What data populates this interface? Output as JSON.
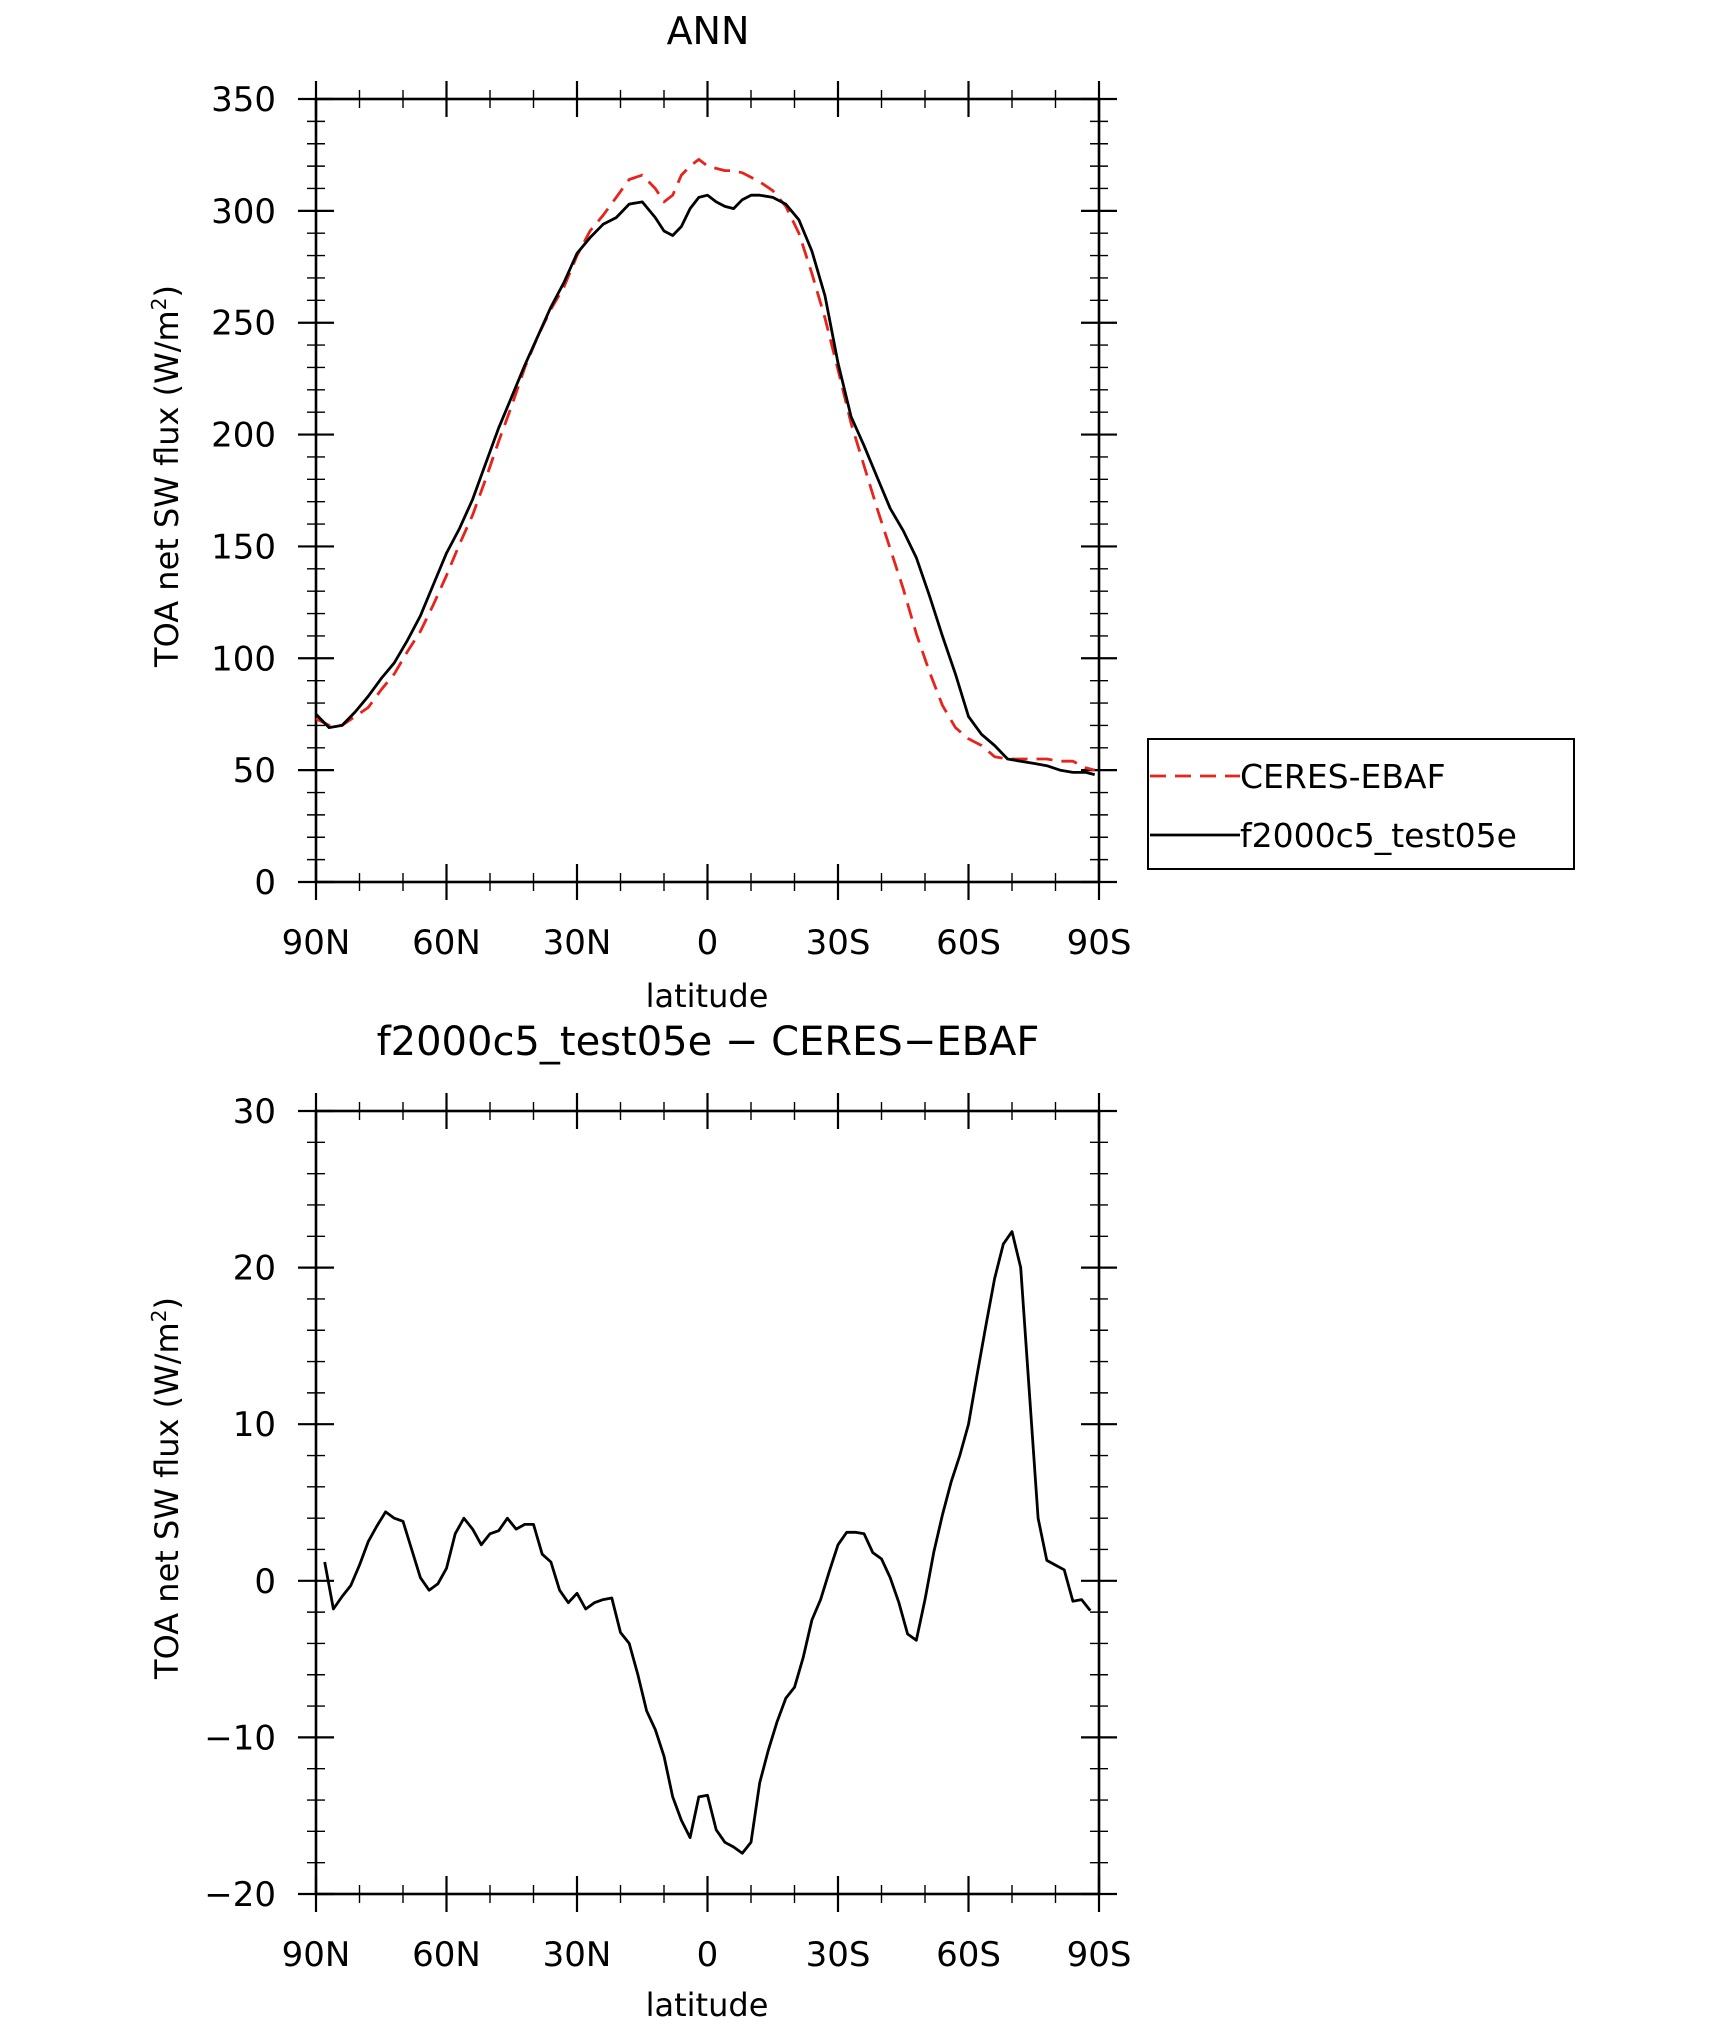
{
  "chart_data": [
    {
      "type": "line",
      "title": "ANN",
      "xlabel": "latitude",
      "ylabel_main": "TOA net SW flux (W/m",
      "ylabel_sup": "2",
      "ylabel_tail": ")",
      "xlim": [
        -90,
        90
      ],
      "ylim": [
        0,
        350
      ],
      "xticks": [
        -90,
        -60,
        -30,
        0,
        30,
        60,
        90
      ],
      "xtick_labels": [
        "90N",
        "60N",
        "30N",
        "0",
        "30S",
        "60S",
        "90S"
      ],
      "yticks": [
        0,
        50,
        100,
        150,
        200,
        250,
        300,
        350
      ],
      "ytick_labels": [
        "0",
        "50",
        "100",
        "150",
        "200",
        "250",
        "300",
        "350"
      ],
      "legend_position": "right",
      "series": [
        {
          "name": "CERES-EBAF",
          "color": "#e8231b",
          "dash": "dashed",
          "x": [
            -90,
            -87,
            -84,
            -81,
            -78,
            -75,
            -72,
            -69,
            -66,
            -63,
            -60,
            -57,
            -54,
            -51,
            -48,
            -45,
            -42,
            -39,
            -36,
            -33,
            -30,
            -27,
            -24,
            -21,
            -18,
            -15,
            -12,
            -10,
            -8,
            -6,
            -4,
            -2,
            0,
            2,
            4,
            6,
            8,
            10,
            12,
            15,
            18,
            21,
            24,
            27,
            30,
            33,
            36,
            39,
            42,
            45,
            48,
            51,
            54,
            57,
            60,
            63,
            66,
            69,
            72,
            75,
            78,
            81,
            84,
            87,
            89
          ],
          "y": [
            73,
            70,
            70,
            74,
            78,
            86,
            93,
            103,
            112,
            124,
            137,
            151,
            164,
            180,
            197,
            213,
            230,
            244,
            256,
            266,
            280,
            291,
            298,
            306,
            314,
            316,
            310,
            304,
            307,
            316,
            320,
            323,
            320,
            319,
            318,
            318,
            317,
            315,
            313,
            309,
            302,
            290,
            272,
            252,
            229,
            205,
            186,
            167,
            149,
            131,
            111,
            94,
            79,
            69,
            64,
            61,
            56,
            55,
            55,
            55,
            55,
            54,
            54,
            51,
            50
          ]
        },
        {
          "name": "f2000c5_test05e",
          "color": "#000000",
          "dash": "solid",
          "x": [
            -90,
            -87,
            -84,
            -81,
            -78,
            -75,
            -72,
            -69,
            -66,
            -63,
            -60,
            -57,
            -54,
            -51,
            -48,
            -45,
            -42,
            -39,
            -36,
            -33,
            -30,
            -27,
            -24,
            -21,
            -18,
            -15,
            -12,
            -10,
            -8,
            -6,
            -4,
            -2,
            0,
            2,
            4,
            6,
            8,
            10,
            12,
            15,
            18,
            21,
            24,
            27,
            30,
            33,
            36,
            39,
            42,
            45,
            48,
            51,
            54,
            57,
            60,
            63,
            66,
            69,
            72,
            75,
            78,
            81,
            84,
            87,
            89
          ],
          "y": [
            75,
            69,
            70,
            76,
            83,
            91,
            98,
            108,
            119,
            133,
            147,
            158,
            171,
            187,
            203,
            217,
            231,
            244,
            257,
            268,
            281,
            288,
            294,
            297,
            303,
            304,
            297,
            291,
            289,
            293,
            301,
            306,
            307,
            304,
            302,
            301,
            305,
            307,
            307,
            306,
            303,
            296,
            282,
            262,
            232,
            208,
            195,
            181,
            167,
            157,
            145,
            128,
            110,
            93,
            74,
            66,
            61,
            55,
            54,
            53,
            52,
            50,
            49,
            49,
            48
          ]
        }
      ]
    },
    {
      "type": "line",
      "title": "f2000c5_test05e − CERES−EBAF",
      "xlabel": "latitude",
      "ylabel_main": "TOA net SW flux (W/m",
      "ylabel_sup": "2",
      "ylabel_tail": ")",
      "xlim": [
        -90,
        90
      ],
      "ylim": [
        -20,
        30
      ],
      "xticks": [
        -90,
        -60,
        -30,
        0,
        30,
        60,
        90
      ],
      "xtick_labels": [
        "90N",
        "60N",
        "30N",
        "0",
        "30S",
        "60S",
        "90S"
      ],
      "yticks": [
        -20,
        -10,
        0,
        10,
        20,
        30
      ],
      "ytick_labels": [
        "−20",
        "−10",
        "0",
        "10",
        "20",
        "30"
      ],
      "series": [
        {
          "name": "f2000c5_test05e − CERES−EBAF",
          "color": "#000000",
          "dash": "solid",
          "x": [
            -88,
            -86,
            -84,
            -82,
            -80,
            -78,
            -76,
            -74,
            -72,
            -70,
            -68,
            -66,
            -64,
            -62,
            -60,
            -58,
            -56,
            -54,
            -52,
            -50,
            -48,
            -46,
            -44,
            -42,
            -40,
            -38,
            -36,
            -34,
            -32,
            -30,
            -28,
            -26,
            -24,
            -22,
            -20,
            -18,
            -16,
            -14,
            -12,
            -10,
            -8,
            -6,
            -4,
            -2,
            0,
            2,
            4,
            6,
            8,
            10,
            12,
            14,
            16,
            18,
            20,
            22,
            24,
            26,
            28,
            30,
            32,
            34,
            36,
            38,
            40,
            42,
            44,
            46,
            48,
            50,
            52,
            54,
            56,
            58,
            60,
            62,
            64,
            66,
            68,
            70,
            72,
            74,
            76,
            78,
            80,
            82,
            84,
            86,
            88
          ],
          "y": [
            1.2,
            -1.8,
            -1.0,
            -0.3,
            1.0,
            2.5,
            3.5,
            4.4,
            4.0,
            3.8,
            2.0,
            0.2,
            -0.6,
            -0.2,
            0.8,
            3.0,
            4.0,
            3.3,
            2.3,
            3.0,
            3.2,
            4.0,
            3.3,
            3.6,
            3.6,
            1.7,
            1.2,
            -0.6,
            -1.4,
            -0.8,
            -1.8,
            -1.4,
            -1.2,
            -1.1,
            -3.3,
            -4.0,
            -6.0,
            -8.3,
            -9.5,
            -11.2,
            -13.8,
            -15.3,
            -16.4,
            -13.8,
            -13.7,
            -15.9,
            -16.7,
            -17.0,
            -17.4,
            -16.7,
            -12.9,
            -10.8,
            -9.0,
            -7.5,
            -6.8,
            -4.9,
            -2.5,
            -1.2,
            0.6,
            2.3,
            3.1,
            3.1,
            3.0,
            1.8,
            1.4,
            0.2,
            -1.4,
            -3.4,
            -3.8,
            -1.2,
            1.8,
            4.2,
            6.3,
            8.0,
            10.0,
            13.2,
            16.3,
            19.3,
            21.5,
            22.3,
            20.0,
            12.0,
            4.0,
            1.3,
            1.0,
            0.7,
            -1.3,
            -1.2,
            -1.9
          ]
        }
      ]
    }
  ]
}
